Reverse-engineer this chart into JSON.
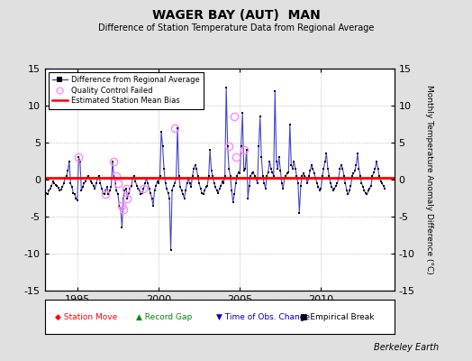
{
  "title": "WAGER BAY (AUT)  MAN",
  "subtitle": "Difference of Station Temperature Data from Regional Average",
  "ylabel_right": "Monthly Temperature Anomaly Difference (°C)",
  "ylim": [
    -15,
    15
  ],
  "yticks": [
    -15,
    -10,
    -5,
    0,
    5,
    10,
    15
  ],
  "xlim": [
    1993.0,
    2014.5
  ],
  "xticks": [
    1995,
    2000,
    2005,
    2010
  ],
  "background_color": "#e0e0e0",
  "plot_bg_color": "#ffffff",
  "bias_line_y": 0.2,
  "bias_line_color": "#ff0000",
  "data_line_color": "#4444cc",
  "data_marker_color": "#000000",
  "qc_marker_color": "#ff88ff",
  "berkeley_earth_text": "Berkeley Earth",
  "times": [
    1993.0,
    1993.083,
    1993.167,
    1993.25,
    1993.333,
    1993.417,
    1993.5,
    1993.583,
    1993.667,
    1993.75,
    1993.833,
    1993.917,
    1994.0,
    1994.083,
    1994.167,
    1994.25,
    1994.333,
    1994.417,
    1994.5,
    1994.583,
    1994.667,
    1994.75,
    1994.833,
    1994.917,
    1995.0,
    1995.083,
    1995.167,
    1995.25,
    1995.333,
    1995.417,
    1995.5,
    1995.583,
    1995.667,
    1995.75,
    1995.833,
    1995.917,
    1996.0,
    1996.083,
    1996.167,
    1996.25,
    1996.333,
    1996.417,
    1996.5,
    1996.583,
    1996.667,
    1996.75,
    1996.833,
    1996.917,
    1997.0,
    1997.083,
    1997.167,
    1997.25,
    1997.333,
    1997.417,
    1997.5,
    1997.583,
    1997.667,
    1997.75,
    1997.833,
    1997.917,
    1998.0,
    1998.083,
    1998.167,
    1998.25,
    1998.333,
    1998.417,
    1998.5,
    1998.583,
    1998.667,
    1998.75,
    1998.833,
    1998.917,
    1999.0,
    1999.083,
    1999.167,
    1999.25,
    1999.333,
    1999.417,
    1999.5,
    1999.583,
    1999.667,
    1999.75,
    1999.833,
    1999.917,
    2000.0,
    2000.083,
    2000.167,
    2000.25,
    2000.333,
    2000.417,
    2000.5,
    2000.583,
    2000.667,
    2000.75,
    2000.833,
    2000.917,
    2001.0,
    2001.083,
    2001.167,
    2001.25,
    2001.333,
    2001.417,
    2001.5,
    2001.583,
    2001.667,
    2001.75,
    2001.833,
    2001.917,
    2002.0,
    2002.083,
    2002.167,
    2002.25,
    2002.333,
    2002.417,
    2002.5,
    2002.583,
    2002.667,
    2002.75,
    2002.833,
    2002.917,
    2003.0,
    2003.083,
    2003.167,
    2003.25,
    2003.333,
    2003.417,
    2003.5,
    2003.583,
    2003.667,
    2003.75,
    2003.833,
    2003.917,
    2004.0,
    2004.083,
    2004.167,
    2004.25,
    2004.333,
    2004.417,
    2004.5,
    2004.583,
    2004.667,
    2004.75,
    2004.833,
    2004.917,
    2005.0,
    2005.083,
    2005.167,
    2005.25,
    2005.333,
    2005.417,
    2005.5,
    2005.583,
    2005.667,
    2005.75,
    2005.833,
    2005.917,
    2006.0,
    2006.083,
    2006.167,
    2006.25,
    2006.333,
    2006.417,
    2006.5,
    2006.583,
    2006.667,
    2006.75,
    2006.833,
    2006.917,
    2007.0,
    2007.083,
    2007.167,
    2007.25,
    2007.333,
    2007.417,
    2007.5,
    2007.583,
    2007.667,
    2007.75,
    2007.833,
    2007.917,
    2008.0,
    2008.083,
    2008.167,
    2008.25,
    2008.333,
    2008.417,
    2008.5,
    2008.583,
    2008.667,
    2008.75,
    2008.833,
    2008.917,
    2009.0,
    2009.083,
    2009.167,
    2009.25,
    2009.333,
    2009.417,
    2009.5,
    2009.583,
    2009.667,
    2009.75,
    2009.833,
    2009.917,
    2010.0,
    2010.083,
    2010.167,
    2010.25,
    2010.333,
    2010.417,
    2010.5,
    2010.583,
    2010.667,
    2010.75,
    2010.833,
    2010.917,
    2011.0,
    2011.083,
    2011.167,
    2011.25,
    2011.333,
    2011.417,
    2011.5,
    2011.583,
    2011.667,
    2011.75,
    2011.833,
    2011.917,
    2012.0,
    2012.083,
    2012.167,
    2012.25,
    2012.333,
    2012.417,
    2012.5,
    2012.583,
    2012.667,
    2012.75,
    2012.833,
    2012.917,
    2013.0,
    2013.083,
    2013.167,
    2013.25,
    2013.333,
    2013.417,
    2013.5,
    2013.583,
    2013.667,
    2013.75,
    2013.833,
    2013.917
  ],
  "values": [
    -2.5,
    -1.8,
    -2.0,
    -1.5,
    -1.2,
    -0.8,
    -0.3,
    -0.5,
    -0.7,
    -0.9,
    -1.1,
    -1.5,
    -1.3,
    -1.0,
    -0.5,
    0.2,
    0.5,
    1.2,
    2.5,
    -0.5,
    -1.0,
    -1.8,
    -2.0,
    -2.5,
    -2.8,
    3.0,
    2.5,
    -1.5,
    -1.0,
    -0.5,
    -0.2,
    0.3,
    0.5,
    0.2,
    -0.3,
    -0.5,
    -0.8,
    -1.2,
    -0.5,
    0.2,
    0.5,
    -0.5,
    -1.2,
    -1.8,
    -2.0,
    -1.5,
    -1.0,
    -2.0,
    -1.5,
    -1.0,
    2.5,
    0.5,
    -0.5,
    -1.5,
    -2.0,
    -3.5,
    -4.0,
    -6.5,
    -2.5,
    -1.5,
    -1.2,
    -2.5,
    -1.8,
    -1.2,
    -0.8,
    0.3,
    0.5,
    -0.3,
    -0.8,
    -1.2,
    -1.5,
    -2.0,
    -1.8,
    -1.2,
    -0.5,
    0.2,
    -0.5,
    -1.2,
    -1.8,
    -2.5,
    -3.5,
    -1.5,
    -0.8,
    -0.3,
    -0.5,
    0.5,
    6.5,
    4.5,
    1.5,
    -0.5,
    -1.2,
    -1.8,
    -2.5,
    -9.5,
    -1.5,
    -0.8,
    -0.5,
    0.2,
    7.0,
    0.5,
    -1.0,
    -1.5,
    -2.0,
    -2.5,
    -1.5,
    -0.5,
    0.2,
    -0.5,
    -1.0,
    0.5,
    1.5,
    2.0,
    1.5,
    0.5,
    -0.5,
    -1.2,
    -1.8,
    -2.0,
    -1.5,
    -1.0,
    -0.8,
    0.5,
    4.0,
    1.2,
    0.5,
    -0.5,
    -1.0,
    -1.5,
    -1.8,
    -1.2,
    -0.8,
    -0.3,
    -0.5,
    0.5,
    12.5,
    4.5,
    1.5,
    0.5,
    -1.5,
    -3.0,
    -2.0,
    -0.5,
    0.5,
    1.0,
    0.8,
    4.5,
    9.0,
    1.2,
    1.5,
    4.0,
    -2.5,
    -0.8,
    0.5,
    0.8,
    1.0,
    0.5,
    0.2,
    -0.5,
    4.5,
    8.5,
    3.0,
    0.5,
    -0.5,
    -1.2,
    0.5,
    1.0,
    2.5,
    1.5,
    1.0,
    0.5,
    12.0,
    2.5,
    1.5,
    3.0,
    1.2,
    -0.5,
    -1.2,
    0.2,
    0.5,
    0.8,
    1.0,
    7.5,
    2.0,
    1.5,
    2.5,
    1.5,
    0.5,
    -0.5,
    -4.5,
    -0.8,
    0.5,
    0.8,
    0.5,
    0.2,
    -0.5,
    0.5,
    1.2,
    2.0,
    1.5,
    0.8,
    0.2,
    -0.5,
    -1.0,
    -1.5,
    -1.2,
    0.5,
    1.5,
    2.5,
    3.5,
    1.5,
    0.5,
    -0.5,
    -1.0,
    -1.5,
    -1.2,
    -0.8,
    -0.5,
    0.2,
    1.5,
    2.0,
    1.5,
    0.5,
    -0.5,
    -1.5,
    -2.0,
    -1.5,
    -0.8,
    0.5,
    0.8,
    1.2,
    2.0,
    3.5,
    1.5,
    0.5,
    -0.5,
    -1.0,
    -1.5,
    -1.8,
    -2.0,
    -1.5,
    -1.2,
    -0.8,
    0.5,
    1.0,
    1.5,
    2.5,
    1.5,
    0.5,
    -0.2,
    -0.5,
    -0.8,
    -1.2
  ],
  "qc_times": [
    1995.083,
    1996.75,
    1997.25,
    1997.417,
    1997.5,
    1997.75,
    1997.833,
    1998.0,
    1998.083,
    1999.083,
    2001.0,
    2004.333,
    2004.667,
    2004.75,
    2005.25
  ],
  "qc_values": [
    3.0,
    -2.0,
    2.5,
    0.5,
    -0.5,
    -3.5,
    -4.0,
    -1.2,
    -2.5,
    -1.2,
    7.0,
    4.5,
    8.5,
    3.0,
    4.0
  ]
}
